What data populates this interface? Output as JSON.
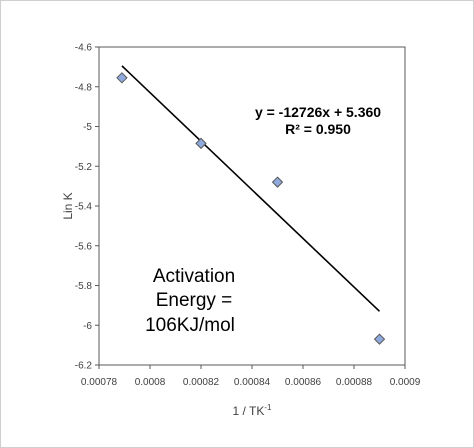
{
  "chart_data": {
    "type": "scatter",
    "xlabel": "1 / TK",
    "xlabel_sup": "-1",
    "ylabel": "Lin K",
    "xlim": [
      0.00078,
      0.0009
    ],
    "ylim": [
      -6.2,
      -4.6
    ],
    "x_ticks": [
      0.00078,
      0.0008,
      0.00082,
      0.00084,
      0.00086,
      0.00088,
      0.0009
    ],
    "x_tick_labels": [
      "0.00078",
      "0.0008",
      "0.00082",
      "0.00084",
      "0.00086",
      "0.00088",
      "0.0009"
    ],
    "y_ticks": [
      -4.6,
      -4.8,
      -5,
      -5.2,
      -5.4,
      -5.6,
      -5.8,
      -6,
      -6.2
    ],
    "y_tick_labels": [
      "-4.6",
      "-4.8",
      "-5",
      "-5.2",
      "-5.4",
      "-5.6",
      "-5.8",
      "-6",
      "-6.2"
    ],
    "grid": false,
    "points": [
      {
        "x": 0.000789,
        "y": -4.755
      },
      {
        "x": 0.00082,
        "y": -5.085
      },
      {
        "x": 0.00085,
        "y": -5.28
      },
      {
        "x": 0.00089,
        "y": -6.07
      }
    ],
    "trendline": {
      "x": [
        0.000789,
        0.00089
      ],
      "y": [
        -4.695,
        -5.93
      ]
    },
    "equation_lines": [
      "y = -12726x + 5.360",
      "R² = 0.950"
    ],
    "annotation_lines": [
      "Activation",
      "Energy =",
      "106KJ/mol"
    ],
    "marker_color": "#8ea9db",
    "marker_edge_color": "#595959",
    "line_color": "#000000"
  }
}
